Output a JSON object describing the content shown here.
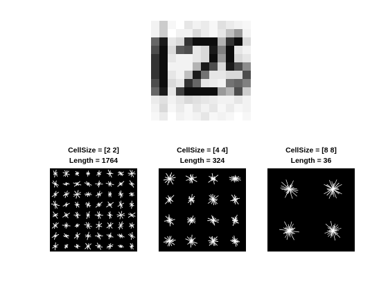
{
  "figure": {
    "digit_image": {
      "grid_size": 12,
      "intensities": [
        [
          0.95,
          0.8,
          0.97,
          1.0,
          0.9,
          0.95,
          0.92,
          0.97,
          0.88,
          0.92,
          0.95,
          0.97
        ],
        [
          0.95,
          0.8,
          1.0,
          0.95,
          0.95,
          0.85,
          0.92,
          0.97,
          0.9,
          0.75,
          0.6,
          0.95
        ],
        [
          0.4,
          0.1,
          0.9,
          0.85,
          0.2,
          0.05,
          0.05,
          0.05,
          0.7,
          0.2,
          0.05,
          0.85
        ],
        [
          0.3,
          0.05,
          0.85,
          0.35,
          0.3,
          0.9,
          0.85,
          0.1,
          0.5,
          0.05,
          0.9,
          0.95
        ],
        [
          0.2,
          0.05,
          0.9,
          0.95,
          0.95,
          0.9,
          0.85,
          0.05,
          0.6,
          0.05,
          0.85,
          0.9
        ],
        [
          0.2,
          0.05,
          0.95,
          0.95,
          0.95,
          0.7,
          0.1,
          0.3,
          0.85,
          0.1,
          0.3,
          0.55
        ],
        [
          0.2,
          0.05,
          0.9,
          0.95,
          0.75,
          0.1,
          0.45,
          0.9,
          0.9,
          0.85,
          0.85,
          0.3
        ],
        [
          0.3,
          0.05,
          0.85,
          0.9,
          0.2,
          0.4,
          0.9,
          0.92,
          0.95,
          0.45,
          0.4,
          0.5
        ],
        [
          0.4,
          0.1,
          0.9,
          0.25,
          0.05,
          0.05,
          0.05,
          0.05,
          0.6,
          0.7,
          0.3,
          0.8
        ],
        [
          0.92,
          0.88,
          0.95,
          0.9,
          0.85,
          0.88,
          0.9,
          0.92,
          0.95,
          0.95,
          0.9,
          0.95
        ],
        [
          0.95,
          0.85,
          0.97,
          0.92,
          0.97,
          0.9,
          0.95,
          0.9,
          0.97,
          0.92,
          0.97,
          0.95
        ],
        [
          0.97,
          0.92,
          1.0,
          0.95,
          0.97,
          0.95,
          0.9,
          0.97,
          0.95,
          0.97,
          1.0,
          0.97
        ]
      ]
    },
    "panels": [
      {
        "title_line1": "CellSize = [2 2]",
        "title_line2": "Length = 1764",
        "cell_grid": 8,
        "glyph_density": "sparse"
      },
      {
        "title_line1": "CellSize = [4 4]",
        "title_line2": "Length = 324",
        "cell_grid": 4,
        "glyph_density": "medium"
      },
      {
        "title_line1": "CellSize = [8 8]",
        "title_line2": "Length = 36",
        "cell_grid": 2,
        "glyph_density": "dense"
      }
    ],
    "colors": {
      "background": "#ffffff",
      "axes_background": "#000000",
      "glyph": "#ffffff"
    }
  }
}
